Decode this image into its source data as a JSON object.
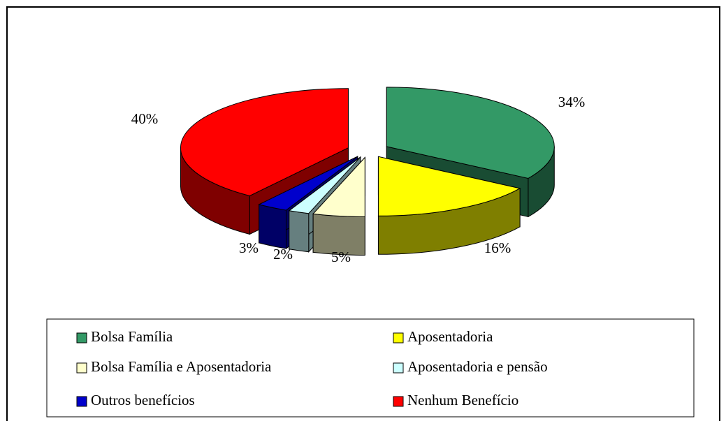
{
  "chart_data": {
    "type": "pie",
    "categories": [
      "Bolsa Família",
      "Aposentadoria",
      "Bolsa Família e Aposentadoria",
      "Aposentadoria e pensão",
      "Outros benefícios",
      "Nenhum Benefício"
    ],
    "values": [
      34,
      16,
      5,
      2,
      3,
      40
    ],
    "value_labels": [
      "34%",
      "16%",
      "5%",
      "2%",
      "3%",
      "40%"
    ],
    "colors": [
      "#339966",
      "#ffff00",
      "#ffffcc",
      "#ccffff",
      "#0000cc",
      "#ff0000"
    ],
    "legend": "bottom"
  }
}
